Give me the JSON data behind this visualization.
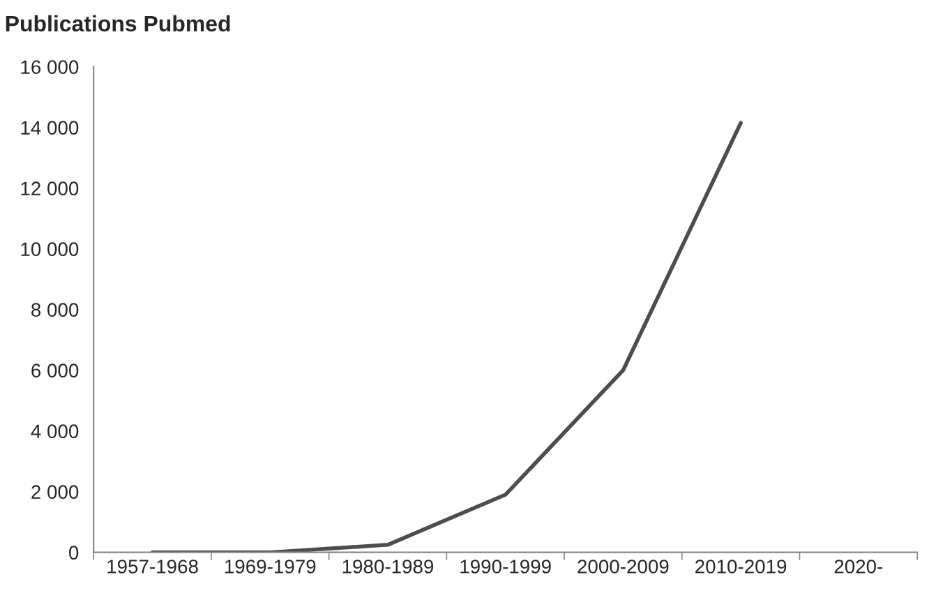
{
  "chart_data": {
    "type": "line",
    "title": "Publications Pubmed",
    "categories": [
      "1957-1968",
      "1969-1979",
      "1980-1989",
      "1990-1999",
      "2000-2009",
      "2010-2019",
      "2020-"
    ],
    "series": [
      {
        "color": "#4d4d4d",
        "values": [
          0,
          0,
          250,
          1900,
          6000,
          14150,
          null
        ]
      }
    ],
    "ylim": [
      0,
      16000
    ],
    "yticks": [
      {
        "value": 0,
        "label": "0"
      },
      {
        "value": 2000,
        "label": "2 000"
      },
      {
        "value": 4000,
        "label": "4 000"
      },
      {
        "value": 6000,
        "label": "6 000"
      },
      {
        "value": 8000,
        "label": "8 000"
      },
      {
        "value": 10000,
        "label": "10 000"
      },
      {
        "value": 12000,
        "label": "12 000"
      },
      {
        "value": 14000,
        "label": "14 000"
      },
      {
        "value": 16000,
        "label": "16 000"
      }
    ],
    "grid": false,
    "legend": false,
    "marker": "none",
    "line_style": "solid"
  }
}
